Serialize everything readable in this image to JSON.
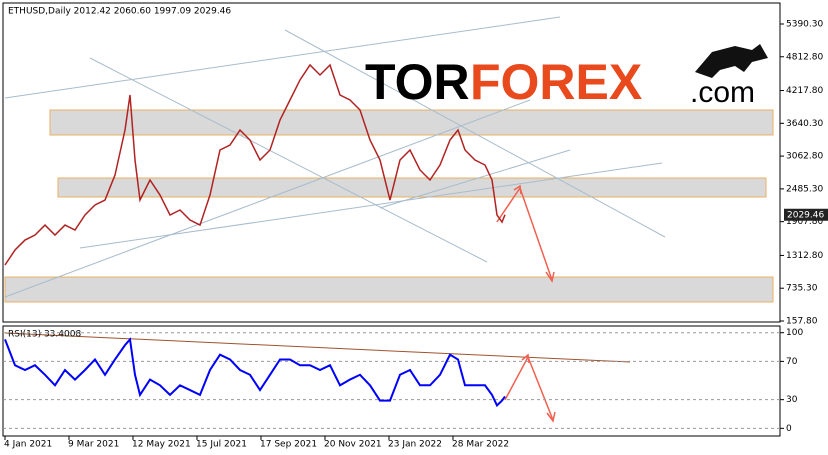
{
  "chart_data": [
    {
      "type": "line",
      "title": "ETHUSD,Daily  2012.42 2060.60 1997.09 2029.46",
      "x": [
        0,
        10,
        20,
        30,
        40,
        50,
        60,
        70,
        80,
        90,
        100,
        110,
        120,
        125,
        130,
        135,
        145,
        155,
        165,
        175,
        185,
        195,
        205,
        215,
        225,
        235,
        245,
        255,
        265,
        275,
        285,
        295,
        305,
        315,
        325,
        335,
        345,
        355,
        365,
        375,
        385,
        395,
        405,
        415,
        425,
        435,
        445,
        453,
        460,
        470,
        480,
        487,
        492,
        497,
        500
      ],
      "series": [
        {
          "color": "#b22222",
          "values": [
            1144,
            1408,
            1584,
            1672,
            1848,
            1672,
            1848,
            1760,
            2025,
            2201,
            2289,
            2730,
            3522,
            4139,
            2994,
            2289,
            2642,
            2377,
            2025,
            2113,
            1936,
            1848,
            2377,
            3170,
            3258,
            3522,
            3346,
            2994,
            3170,
            3698,
            4051,
            4404,
            4668,
            4492,
            4668,
            4139,
            4051,
            3875,
            3346,
            2994,
            2289,
            2994,
            3170,
            2818,
            2642,
            2906,
            3346,
            3522,
            3170,
            2994,
            2906,
            2642,
            2025,
            1901,
            2029.46
          ]
        }
      ],
      "last_price": 2029.46,
      "xlim": [
        -2,
        775
      ],
      "xticks": [
        {
          "value": 0,
          "label": "4 Jan 2021"
        },
        {
          "value": 64,
          "label": "9 Mar 2021"
        },
        {
          "value": 128,
          "label": "12 May 2021"
        },
        {
          "value": 192,
          "label": "15 Jul 2021"
        },
        {
          "value": 256,
          "label": "17 Sep 2021"
        },
        {
          "value": 320,
          "label": "20 Nov 2021"
        },
        {
          "value": 384,
          "label": "23 Jan 2022"
        },
        {
          "value": 448,
          "label": "28 Mar 2022"
        }
      ],
      "ylim": [
        140,
        5760
      ],
      "yticks": [
        {
          "value": 5390.3,
          "label": "5390.30"
        },
        {
          "value": 4812.8,
          "label": "4812.80"
        },
        {
          "value": 4217.8,
          "label": "4217.80"
        },
        {
          "value": 3640.3,
          "label": "3640.30"
        },
        {
          "value": 3062.8,
          "label": "3062.80"
        },
        {
          "value": 2485.3,
          "label": "2485.30"
        },
        {
          "value": 1907.8,
          "label": "1907.80"
        },
        {
          "value": 1312.8,
          "label": "1312.80"
        },
        {
          "value": 735.3,
          "label": "735.30"
        },
        {
          "value": 157.8,
          "label": "157.80"
        }
      ],
      "logo": {
        "left": "TOR",
        "right": "FOREX",
        "suffix": ".com"
      }
    },
    {
      "type": "line",
      "title": "RSI(13) 33.4008",
      "x": [
        0,
        10,
        20,
        30,
        40,
        50,
        60,
        70,
        80,
        90,
        100,
        110,
        120,
        125,
        130,
        135,
        145,
        155,
        165,
        175,
        185,
        195,
        205,
        215,
        225,
        235,
        245,
        255,
        265,
        275,
        285,
        295,
        305,
        315,
        325,
        335,
        345,
        355,
        365,
        375,
        385,
        395,
        405,
        415,
        425,
        435,
        445,
        453,
        460,
        470,
        480,
        487,
        492,
        497,
        500
      ],
      "series": [
        {
          "color": "#0000ff",
          "values": [
            93,
            66,
            61,
            66,
            56,
            45,
            61,
            51,
            61,
            72,
            56,
            72,
            87,
            93,
            56,
            35,
            51,
            45,
            35,
            45,
            40,
            35,
            61,
            77,
            72,
            61,
            56,
            40,
            56,
            72,
            72,
            66,
            66,
            61,
            66,
            45,
            51,
            56,
            45,
            29,
            29,
            56,
            61,
            45,
            45,
            56,
            77,
            72,
            45,
            45,
            45,
            35,
            24,
            29,
            33.4
          ]
        }
      ],
      "xlim": [
        -2,
        775
      ],
      "ylim": [
        -8,
        107
      ],
      "yticks": [
        100,
        70,
        30,
        0
      ]
    }
  ]
}
